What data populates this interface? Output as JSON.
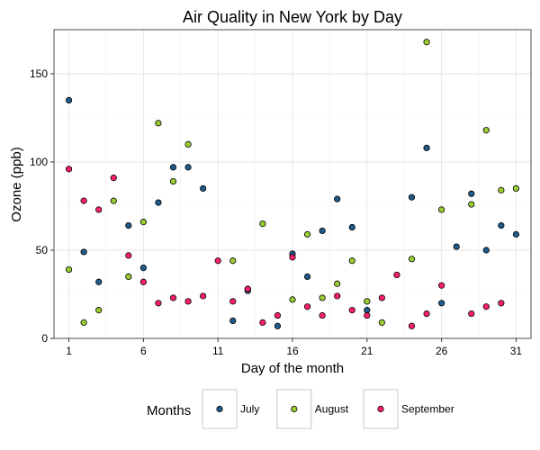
{
  "chart_data": {
    "type": "scatter",
    "title": "Air Quality in New York by Day",
    "xlabel": "Day of the month",
    "ylabel": "Ozone (ppb)",
    "xlim": [
      0,
      32
    ],
    "ylim": [
      0,
      175
    ],
    "xticks": [
      1,
      6,
      11,
      16,
      21,
      26,
      31
    ],
    "yticks": [
      0,
      50,
      100,
      150
    ],
    "grid": true,
    "legend": {
      "title": "Months",
      "position": "bottom"
    },
    "series": [
      {
        "name": "July",
        "color": "#1f5b8c",
        "points": [
          [
            1,
            135
          ],
          [
            2,
            49
          ],
          [
            3,
            32
          ],
          [
            5,
            64
          ],
          [
            6,
            40
          ],
          [
            7,
            77
          ],
          [
            8,
            97
          ],
          [
            9,
            97
          ],
          [
            10,
            85
          ],
          [
            12,
            10
          ],
          [
            13,
            27
          ],
          [
            15,
            7
          ],
          [
            16,
            48
          ],
          [
            17,
            35
          ],
          [
            18,
            61
          ],
          [
            19,
            79
          ],
          [
            20,
            63
          ],
          [
            21,
            16
          ],
          [
            24,
            80
          ],
          [
            25,
            108
          ],
          [
            26,
            20
          ],
          [
            27,
            52
          ],
          [
            28,
            82
          ],
          [
            29,
            50
          ],
          [
            30,
            64
          ],
          [
            31,
            59
          ]
        ]
      },
      {
        "name": "August",
        "color": "#9acd32",
        "points": [
          [
            1,
            39
          ],
          [
            2,
            9
          ],
          [
            3,
            16
          ],
          [
            4,
            78
          ],
          [
            5,
            35
          ],
          [
            6,
            66
          ],
          [
            7,
            122
          ],
          [
            8,
            89
          ],
          [
            9,
            110
          ],
          [
            12,
            44
          ],
          [
            13,
            28
          ],
          [
            14,
            65
          ],
          [
            16,
            22
          ],
          [
            17,
            59
          ],
          [
            18,
            23
          ],
          [
            19,
            31
          ],
          [
            20,
            44
          ],
          [
            21,
            21
          ],
          [
            22,
            9
          ],
          [
            24,
            45
          ],
          [
            25,
            168
          ],
          [
            26,
            73
          ],
          [
            28,
            76
          ],
          [
            29,
            118
          ],
          [
            30,
            84
          ],
          [
            31,
            85
          ]
        ]
      },
      {
        "name": "September",
        "color": "#ff1f6e",
        "points": [
          [
            1,
            96
          ],
          [
            2,
            78
          ],
          [
            3,
            73
          ],
          [
            4,
            91
          ],
          [
            5,
            47
          ],
          [
            6,
            32
          ],
          [
            7,
            20
          ],
          [
            8,
            23
          ],
          [
            9,
            21
          ],
          [
            10,
            24
          ],
          [
            11,
            44
          ],
          [
            12,
            21
          ],
          [
            13,
            28
          ],
          [
            14,
            9
          ],
          [
            15,
            13
          ],
          [
            16,
            46
          ],
          [
            17,
            18
          ],
          [
            18,
            13
          ],
          [
            19,
            24
          ],
          [
            20,
            16
          ],
          [
            21,
            13
          ],
          [
            22,
            23
          ],
          [
            23,
            36
          ],
          [
            24,
            7
          ],
          [
            25,
            14
          ],
          [
            26,
            30
          ],
          [
            28,
            14
          ],
          [
            29,
            18
          ],
          [
            30,
            20
          ]
        ]
      }
    ]
  }
}
